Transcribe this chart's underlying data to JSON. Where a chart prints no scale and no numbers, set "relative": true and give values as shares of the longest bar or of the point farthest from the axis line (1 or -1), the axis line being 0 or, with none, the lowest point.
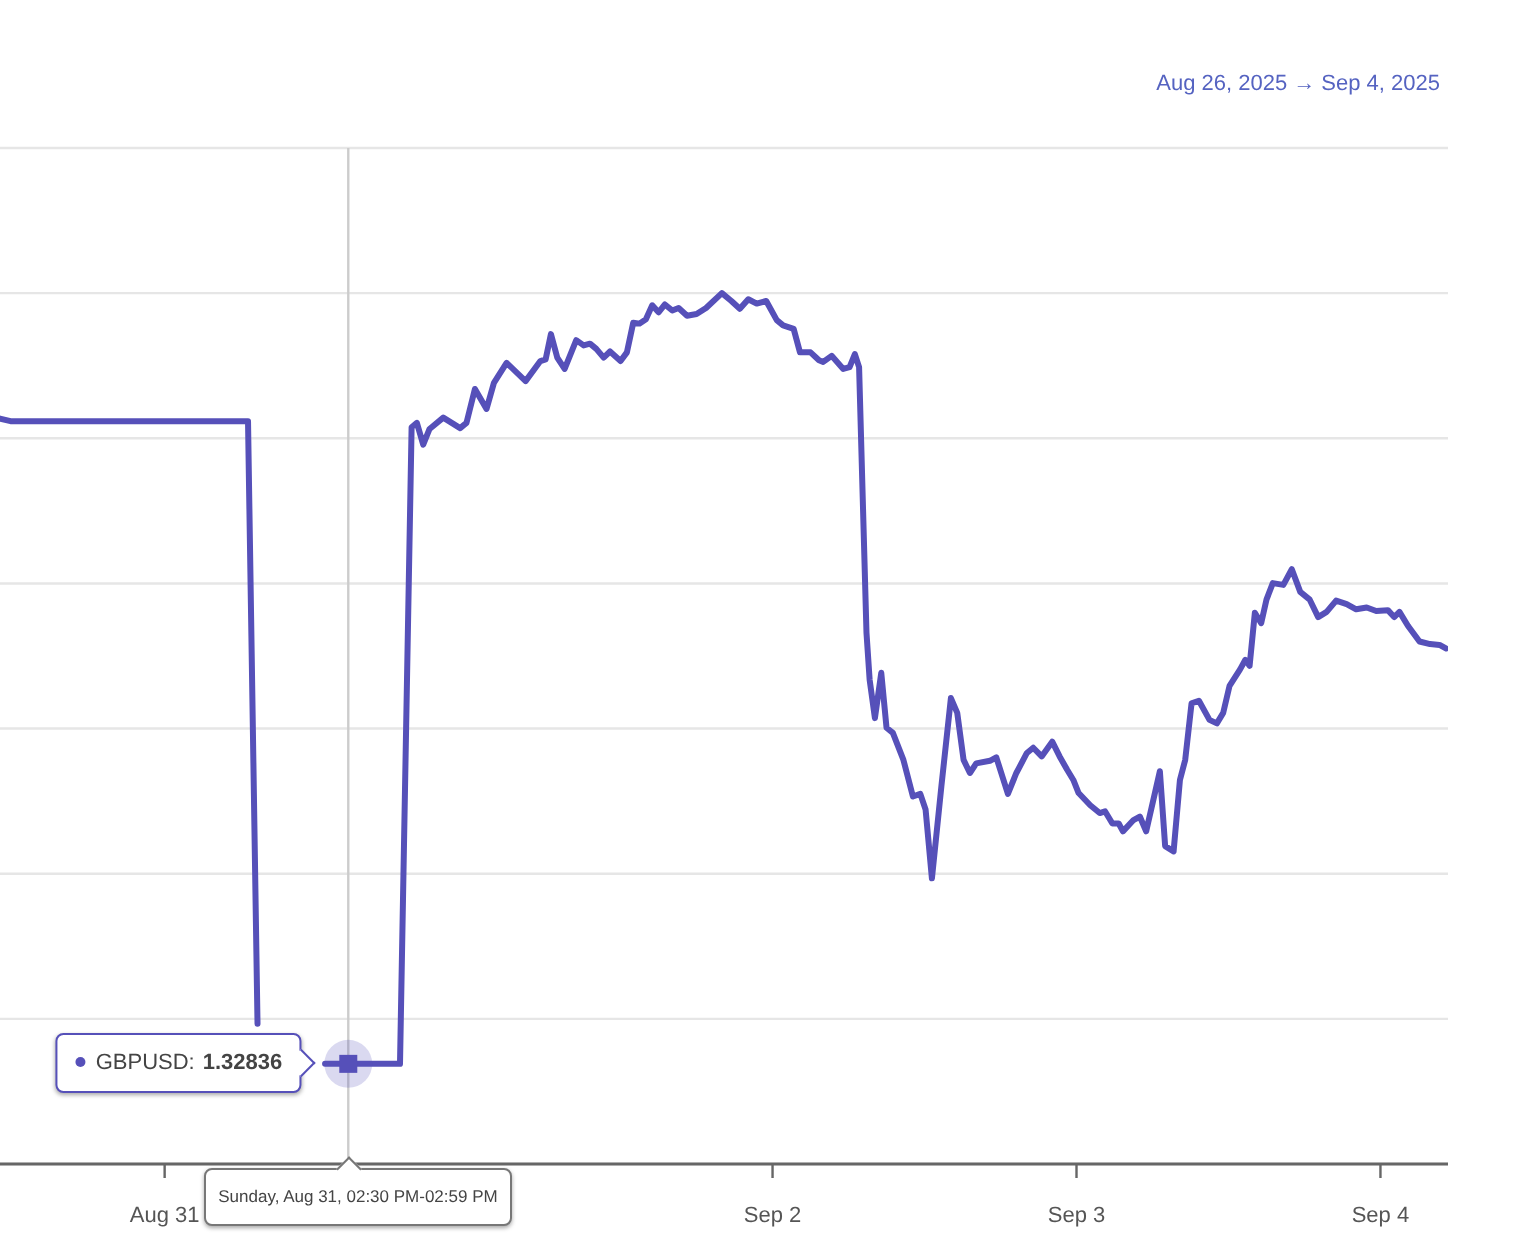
{
  "chart_data": {
    "type": "line",
    "subtitle": "Aug 26, 2025 → Sep 4, 2025",
    "relative": true,
    "x": [
      "2025-08-30T11:00",
      "2025-08-30T11:50",
      "2025-08-31T06:35",
      "2025-08-31T07:20",
      "2025-08-31T10:00",
      "2025-08-31T12:40",
      "2025-08-31T14:30",
      "2025-08-31T18:35",
      "2025-08-31T19:30",
      "2025-08-31T19:55",
      "2025-08-31T20:25",
      "2025-08-31T20:55",
      "2025-08-31T22:00",
      "2025-08-31T23:20",
      "2025-08-31T23:50",
      "2025-09-01T00:30",
      "2025-09-01T01:25",
      "2025-09-01T02:00",
      "2025-09-01T03:00",
      "2025-09-01T04:30",
      "2025-09-01T05:40",
      "2025-09-01T06:05",
      "2025-09-01T06:30",
      "2025-09-01T07:00",
      "2025-09-01T07:35",
      "2025-09-01T08:30",
      "2025-09-01T09:05",
      "2025-09-01T09:35",
      "2025-09-01T10:05",
      "2025-09-01T10:40",
      "2025-09-01T11:10",
      "2025-09-01T12:00",
      "2025-09-01T12:30",
      "2025-09-01T13:00",
      "2025-09-01T13:30",
      "2025-09-01T14:00",
      "2025-09-01T14:30",
      "2025-09-01T15:00",
      "2025-09-01T15:30",
      "2025-09-01T16:05",
      "2025-09-01T16:35",
      "2025-09-01T17:15",
      "2025-09-01T18:00",
      "2025-09-01T18:45",
      "2025-09-01T20:00",
      "2025-09-01T20:45",
      "2025-09-01T21:25",
      "2025-09-01T22:05",
      "2025-09-01T22:45",
      "2025-09-01T23:30",
      "2025-09-02T00:20",
      "2025-09-02T00:50",
      "2025-09-02T01:40",
      "2025-09-02T02:10",
      "2025-09-02T03:00",
      "2025-09-02T03:40",
      "2025-09-02T04:00",
      "2025-09-02T04:40",
      "2025-09-02T05:35",
      "2025-09-02T06:05",
      "2025-09-02T06:30",
      "2025-09-02T06:50",
      "2025-09-02T07:25",
      "2025-09-02T07:40",
      "2025-09-02T08:05",
      "2025-09-02T08:35",
      "2025-09-02T09:00",
      "2025-09-02T09:30",
      "2025-09-02T10:20",
      "2025-09-02T11:05",
      "2025-09-02T11:40",
      "2025-09-02T12:05",
      "2025-09-02T12:35",
      "2025-09-02T13:20",
      "2025-09-02T14:05",
      "2025-09-02T14:35",
      "2025-09-02T15:05",
      "2025-09-02T15:35",
      "2025-09-02T16:05",
      "2025-09-02T17:10",
      "2025-09-02T17:40",
      "2025-09-02T18:35",
      "2025-09-02T19:15",
      "2025-09-02T20:05",
      "2025-09-02T20:35",
      "2025-09-02T21:15",
      "2025-09-02T22:05",
      "2025-09-02T22:40",
      "2025-09-02T23:15",
      "2025-09-02T23:45",
      "2025-09-03T00:10",
      "2025-09-03T01:05",
      "2025-09-03T01:50",
      "2025-09-03T02:15",
      "2025-09-03T02:50",
      "2025-09-03T03:20",
      "2025-09-03T03:40",
      "2025-09-03T04:30",
      "2025-09-03T05:00",
      "2025-09-03T05:30",
      "2025-09-03T06:35",
      "2025-09-03T07:00",
      "2025-09-03T07:40",
      "2025-09-03T08:10",
      "2025-09-03T08:35",
      "2025-09-03T09:05",
      "2025-09-03T09:40",
      "2025-09-03T10:30",
      "2025-09-03T11:05",
      "2025-09-03T11:35",
      "2025-09-03T12:05",
      "2025-09-03T12:55",
      "2025-09-03T13:20",
      "2025-09-03T13:40",
      "2025-09-03T14:05",
      "2025-09-03T14:35",
      "2025-09-03T15:00",
      "2025-09-03T15:30",
      "2025-09-03T16:20",
      "2025-09-03T17:00",
      "2025-09-03T17:40",
      "2025-09-03T18:25",
      "2025-09-03T19:05",
      "2025-09-03T19:45",
      "2025-09-03T20:30",
      "2025-09-03T21:20",
      "2025-09-03T22:05",
      "2025-09-03T22:55",
      "2025-09-03T23:40",
      "2025-09-04T00:35",
      "2025-09-04T01:05",
      "2025-09-04T01:30",
      "2025-09-04T02:10",
      "2025-09-04T03:05",
      "2025-09-04T03:55",
      "2025-09-04T04:40",
      "2025-09-04T05:10"
    ],
    "series": [
      {
        "color": "#5650b9",
        "values": [
          0.856,
          0.853,
          0.853,
          0.161,
          null,
          0.115,
          0.115,
          0.115,
          0.846,
          0.851,
          0.826,
          0.844,
          0.857,
          0.845,
          0.851,
          0.89,
          0.867,
          0.897,
          0.92,
          0.899,
          0.922,
          0.924,
          0.953,
          0.926,
          0.913,
          0.946,
          0.94,
          0.942,
          0.936,
          0.926,
          0.933,
          0.922,
          0.932,
          0.966,
          0.965,
          0.97,
          0.986,
          0.978,
          0.987,
          0.98,
          0.983,
          0.974,
          0.976,
          0.983,
          1.0,
          0.991,
          0.982,
          0.993,
          0.988,
          0.991,
          0.969,
          0.963,
          0.959,
          0.932,
          0.932,
          0.923,
          0.921,
          0.928,
          0.913,
          0.915,
          0.93,
          0.915,
          0.61,
          0.556,
          0.512,
          0.564,
          0.501,
          0.495,
          0.464,
          0.422,
          0.425,
          0.407,
          0.328,
          0.434,
          0.535,
          0.518,
          0.464,
          0.449,
          0.46,
          0.463,
          0.467,
          0.425,
          0.449,
          0.472,
          0.478,
          0.468,
          0.485,
          0.468,
          0.453,
          0.441,
          0.426,
          0.412,
          0.403,
          0.405,
          0.391,
          0.391,
          0.382,
          0.395,
          0.399,
          0.382,
          0.451,
          0.365,
          0.359,
          0.441,
          0.464,
          0.529,
          0.532,
          0.51,
          0.506,
          0.518,
          0.549,
          0.568,
          0.579,
          0.572,
          0.633,
          0.621,
          0.648,
          0.667,
          0.665,
          0.683,
          0.657,
          0.648,
          0.628,
          0.634,
          0.647,
          0.643,
          0.637,
          0.639,
          0.635,
          0.636,
          0.628,
          0.634,
          0.618,
          0.6,
          0.597,
          0.596,
          0.592
        ]
      }
    ],
    "xlim": [
      "2025-08-30T11:00",
      "2025-09-04T05:20"
    ],
    "xticks": [
      {
        "value": "2025-08-31",
        "label": "Aug 31"
      },
      {
        "value": "2025-09-02",
        "label": "Sep 2"
      },
      {
        "value": "2025-09-03",
        "label": "Sep 3"
      },
      {
        "value": "2025-09-04",
        "label": "Sep 4"
      }
    ],
    "grid": "y",
    "line_style": "solid",
    "ref_lines": [
      {
        "axis": "x",
        "value": "2025-08-31T14:30",
        "label": "Sunday, Aug 31, 02:30 PM-02:59 PM",
        "color": "#cccccc"
      }
    ],
    "annotations": [
      "GBPUSD: 1.32836"
    ]
  }
}
